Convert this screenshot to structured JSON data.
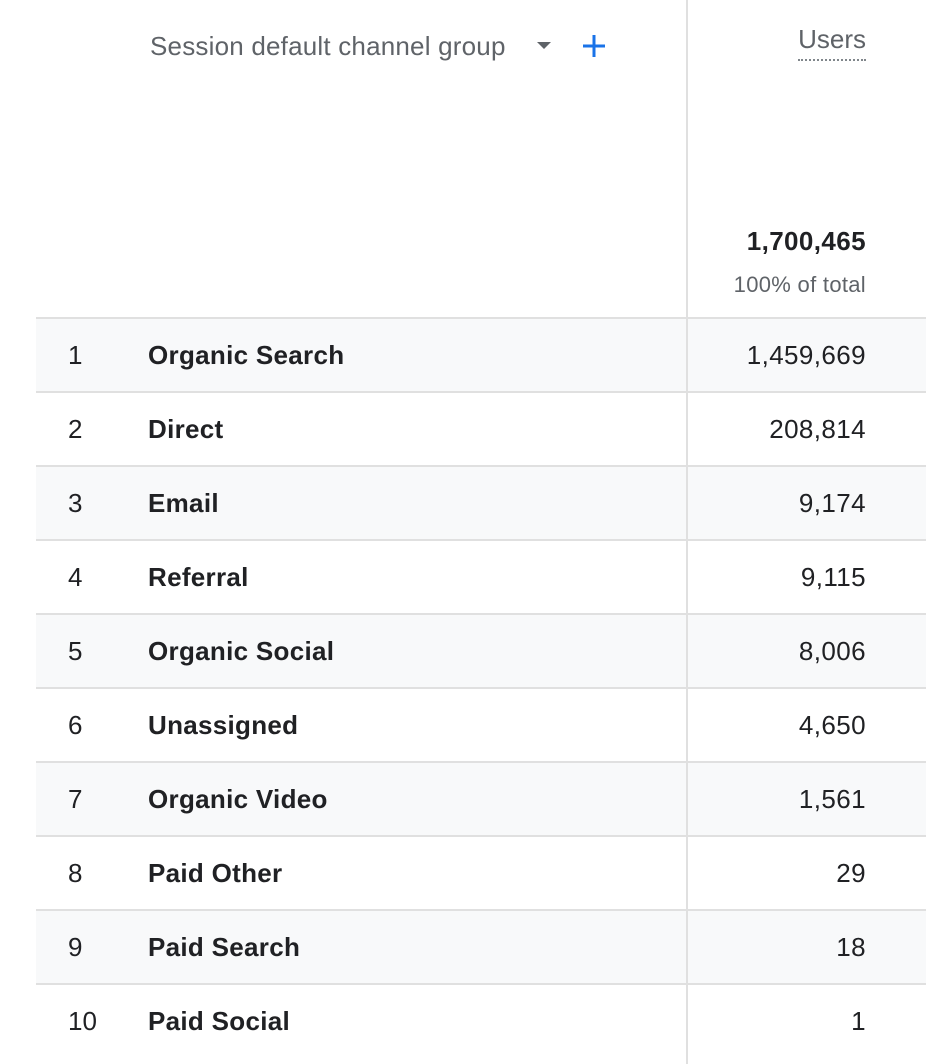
{
  "header": {
    "dimension_label": "Session default channel group",
    "dropdown_icon": "arrow-drop-down-icon",
    "add_icon": "plus-icon",
    "metric_label": "Users",
    "total_value": "1,700,465",
    "total_percent": "100% of total"
  },
  "colors": {
    "accent": "#1a73e8",
    "row_alt_bg": "#f8f9fa",
    "divider": "#e0e0e0",
    "text_primary": "#202124",
    "text_secondary": "#5f6368"
  },
  "rows": [
    {
      "index": "1",
      "name": "Organic Search",
      "value": "1,459,669"
    },
    {
      "index": "2",
      "name": "Direct",
      "value": "208,814"
    },
    {
      "index": "3",
      "name": "Email",
      "value": "9,174"
    },
    {
      "index": "4",
      "name": "Referral",
      "value": "9,115"
    },
    {
      "index": "5",
      "name": "Organic Social",
      "value": "8,006"
    },
    {
      "index": "6",
      "name": "Unassigned",
      "value": "4,650"
    },
    {
      "index": "7",
      "name": "Organic Video",
      "value": "1,561"
    },
    {
      "index": "8",
      "name": "Paid Other",
      "value": "29"
    },
    {
      "index": "9",
      "name": "Paid Search",
      "value": "18"
    },
    {
      "index": "10",
      "name": "Paid Social",
      "value": "1"
    }
  ]
}
